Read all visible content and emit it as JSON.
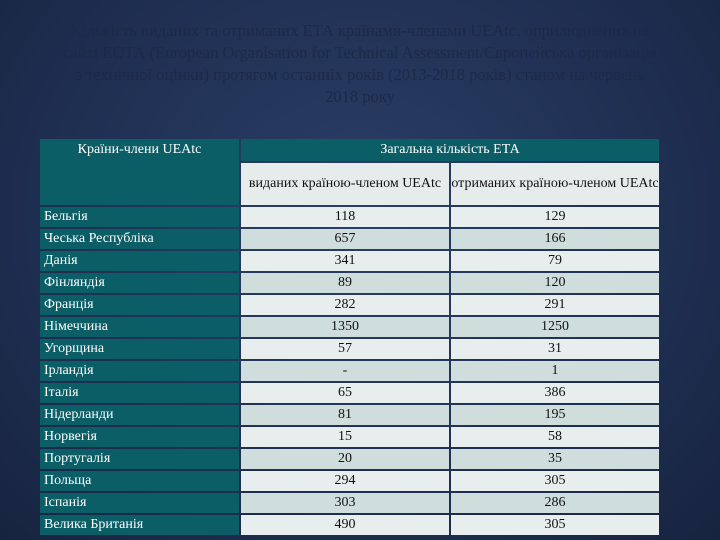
{
  "title": "Кількість виданих та отриманих ЕТА країнами-членами UEAtc, оприлюднених на сайті ЕОТА (European Organisation for Technical Assessment/Європейська організація з технічної оцінки) протягом останніх років (2013-2018 років) станом на червень 2018 року",
  "table": {
    "header": {
      "country": "Країни-члени UEAtc",
      "total": "Загальна кількість ЕТА",
      "issued": "виданих країною-членом UEAtc",
      "received": "отриманих країною-членом UEAtc"
    },
    "rows": [
      [
        "Бельгія",
        "118",
        "129"
      ],
      [
        "Чеська Республіка",
        "657",
        "166"
      ],
      [
        "Данія",
        "341",
        "79"
      ],
      [
        "Фінляндія",
        "89",
        "120"
      ],
      [
        "Франція",
        "282",
        "291"
      ],
      [
        "Німеччина",
        "1350",
        "1250"
      ],
      [
        "Угорщина",
        "57",
        "31"
      ],
      [
        "Ірландія",
        "-",
        "1"
      ],
      [
        "Італія",
        "65",
        "386"
      ],
      [
        "Нідерланди",
        "81",
        "195"
      ],
      [
        "Норвегія",
        "15",
        "58"
      ],
      [
        "Португалія",
        "20",
        "35"
      ],
      [
        "Польща",
        "294",
        "305"
      ],
      [
        "Іспанія",
        "303",
        "286"
      ],
      [
        "Велика Британія",
        "490",
        "305"
      ]
    ]
  }
}
